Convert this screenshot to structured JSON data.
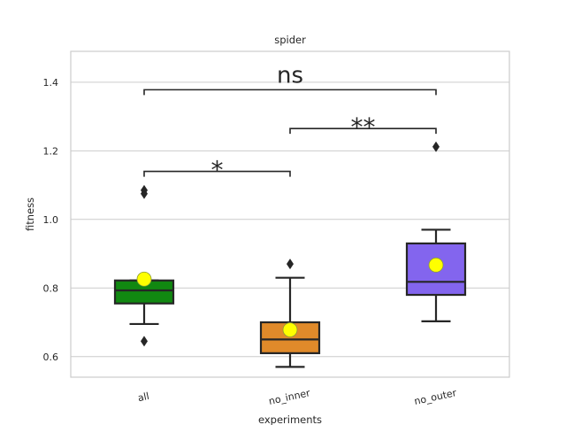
{
  "chart_data": {
    "type": "box",
    "title": "spider",
    "xlabel": "experiments",
    "ylabel": "fitness",
    "ylim": [
      0.54,
      1.49
    ],
    "yticks": [
      "0.6",
      "0.8",
      "1.0",
      "1.2",
      "1.4"
    ],
    "grid": "horizontal",
    "categories": [
      "all",
      "no_inner",
      "no_outer"
    ],
    "boxes": [
      {
        "category": "all",
        "color": "#118811",
        "whisker_low": 0.695,
        "q1": 0.755,
        "median": 0.793,
        "q3": 0.822,
        "whisker_high": 0.822,
        "mean": 0.826,
        "outliers": [
          0.645,
          1.075,
          1.085
        ]
      },
      {
        "category": "no_inner",
        "color": "#e08a2a",
        "whisker_low": 0.57,
        "q1": 0.61,
        "median": 0.65,
        "q3": 0.7,
        "whisker_high": 0.83,
        "mean": 0.678,
        "outliers": [
          0.87
        ]
      },
      {
        "category": "no_outer",
        "color": "#8365ee",
        "whisker_low": 0.703,
        "q1": 0.78,
        "median": 0.818,
        "q3": 0.93,
        "whisker_high": 0.97,
        "mean": 0.867,
        "outliers": [
          1.212
        ]
      }
    ],
    "mean_marker_color": "#ffff00",
    "annotations": [
      {
        "from": "all",
        "to": "no_inner",
        "y": 1.14,
        "label": "*"
      },
      {
        "from": "no_inner",
        "to": "no_outer",
        "y": 1.265,
        "label": "**"
      },
      {
        "from": "all",
        "to": "no_outer",
        "y": 1.378,
        "label": "ns"
      }
    ]
  }
}
